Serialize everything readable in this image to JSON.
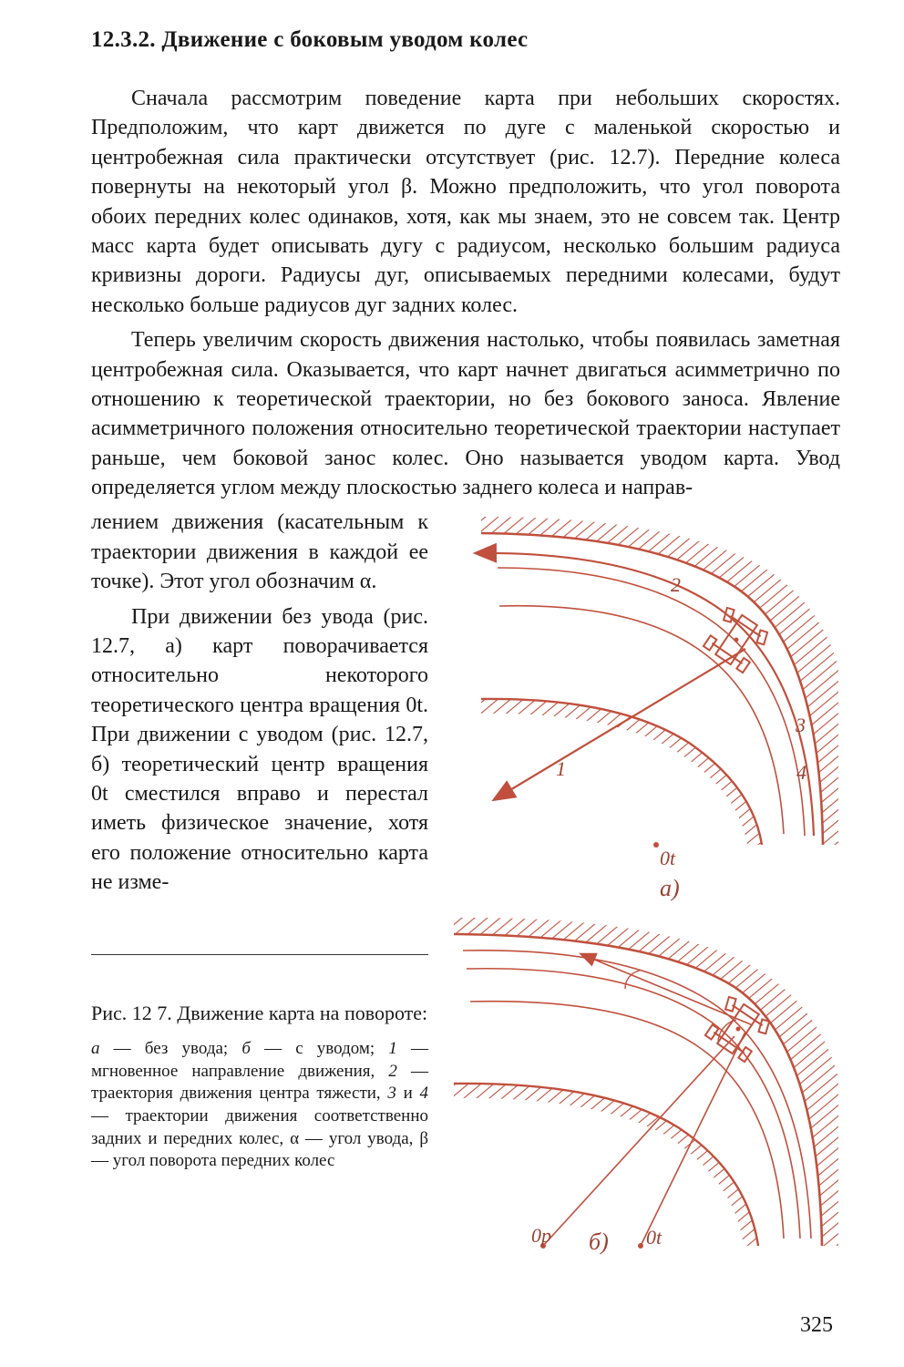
{
  "heading": "12.3.2. Движение с боковым уводом колес",
  "para1": "Сначала рассмотрим поведение карта при небольших скоростях. Предположим, что карт движется по дуге с маленькой скоростью и центробежная сила практически отсутствует (рис. 12.7). Передние колеса повернуты на некоторый угол β. Можно предположить, что угол поворота обоих передних колес одинаков, хотя, как мы знаем, это не совсем так. Центр масс карта будет описывать дугу с радиусом, несколько большим радиуса кривизны дороги. Радиусы дуг, описываемых передними колесами, будут несколько больше радиусов дуг задних колес.",
  "para2": "Теперь увеличим скорость движения настолько, чтобы появилась заметная центробежная сила. Оказывается, что карт начнет двигаться асимметрично по отношению к теоретической траектории, но без бокового заноса. Явление асимметричного положения относительно теоретической траектории наступает раньше, чем боковой занос колес. Оно называется уводом карта. Увод определяется углом между плоскостью заднего колеса и направ-",
  "para3a": "лением движения (касательным к траектории движения в каждой ее точке). Этот угол обозначим α.",
  "para3b": "При движении без увода (рис. 12.7, а) карт поворачивается относительно некоторого теоретического центра вращения 0t. При движении с уводом (рис. 12.7, б) теоретический центр вращения 0t сместился вправо и перестал иметь физическое значение, хотя его положение относительно карта не изме-",
  "fig": {
    "title": "Рис. 12 7. Движение карта на повороте:",
    "legend_html": "<span class='ital'>а</span> — без увода; <span class='ital'>б</span> — с уводом; <span class='ital'>1</span> — мгновенное направление движения, <span class='ital'>2</span> — траектория движения центра тяжести, <span class='ital'>3</span> и <span class='ital'>4</span> — траектории движения соответственно задних и передних колес, α — угол увода, β — угол поворота передних колес",
    "labels": {
      "a": "а)",
      "b": "б)",
      "n1": "1",
      "n2": "2",
      "n3": "3",
      "n4": "4",
      "Ot": "0t",
      "Op": "0p"
    },
    "colors": {
      "ink": "#c0503d",
      "ink_light": "#d98a7a",
      "text": "#9a4232"
    }
  },
  "page_number": "325"
}
